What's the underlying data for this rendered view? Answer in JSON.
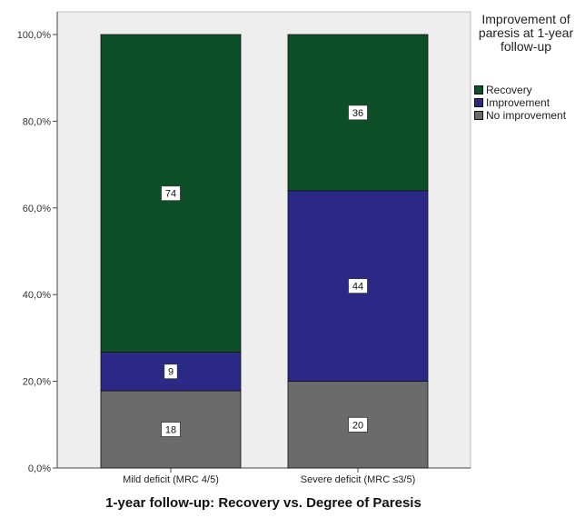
{
  "chart_data": {
    "type": "bar",
    "stacked": true,
    "title": "",
    "xlabel": "1-year follow-up: Recovery vs. Degree of Paresis",
    "ylabel": "",
    "ylim": [
      0,
      100
    ],
    "yticks": [
      "0,0%",
      "20,0%",
      "40,0%",
      "60,0%",
      "80,0%",
      "100,0%"
    ],
    "categories": [
      "Mild deficit (MRC 4/5)",
      "Severe deficit (MRC ≤3/5)"
    ],
    "series": [
      {
        "name": "No improvement",
        "values": [
          18,
          20
        ],
        "labels": [
          "18",
          "20"
        ],
        "color": "#6b6b6b"
      },
      {
        "name": "Improvement",
        "values": [
          9,
          44
        ],
        "labels": [
          "9",
          "44"
        ],
        "color": "#2a2a86"
      },
      {
        "name": "Recovery",
        "values": [
          74,
          36
        ],
        "labels": [
          "74",
          "36"
        ],
        "color": "#0f4f27"
      }
    ],
    "legend": {
      "title": "Improvement of paresis at 1-year follow-up",
      "position": "right",
      "items": [
        {
          "label": "Recovery",
          "color": "#0f4f27"
        },
        {
          "label": "Improvement",
          "color": "#2a2a86"
        },
        {
          "label": "No improvement",
          "color": "#6b6b6b"
        }
      ]
    },
    "plot_background": "#eeeeee",
    "grid": false
  }
}
